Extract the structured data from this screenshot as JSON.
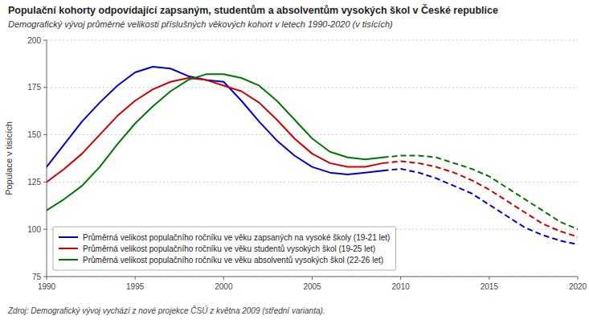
{
  "chart_data": {
    "type": "line",
    "title": "Populační kohorty odpovídající zapsaným, studentům a absolventům vysokých škol v České republice",
    "subtitle": "Demografický vývoj průměrné velikosti příslušných věkových kohort v letech 1990-2020 (v tisících)",
    "ylabel": "Populace v tisících",
    "source": "Zdroj: Demografický vývoj vychází z nové projekce ČSÚ z května 2009 (střední varianta).",
    "x": [
      1990,
      1991,
      1992,
      1993,
      1994,
      1995,
      1996,
      1997,
      1998,
      1999,
      2000,
      2001,
      2002,
      2003,
      2004,
      2005,
      2006,
      2007,
      2008,
      2009,
      2010,
      2011,
      2012,
      2013,
      2014,
      2015,
      2016,
      2017,
      2018,
      2019,
      2020
    ],
    "series": [
      {
        "name": "Průměrná velikost populačního ročníku ve věku zapsaných na vysoké školy (19-21 let)",
        "color": "#0000cc",
        "values": [
          133,
          145,
          157,
          167,
          176,
          183,
          186,
          185,
          181,
          179,
          178,
          168,
          157,
          147,
          139,
          133,
          130,
          129,
          130,
          131,
          132,
          130,
          127,
          123,
          119,
          113,
          107,
          101,
          97,
          94,
          92
        ]
      },
      {
        "name": "Průměrná velikost populačního ročníku ve věku studentů vysokých škol (19-25 let)",
        "color": "#cc0000",
        "values": [
          125,
          132,
          140,
          150,
          160,
          168,
          174,
          178,
          180,
          179,
          176,
          173,
          167,
          158,
          148,
          140,
          135,
          133,
          133,
          135,
          136,
          135,
          133,
          130,
          126,
          121,
          115,
          109,
          103,
          99,
          96
        ]
      },
      {
        "name": "Průměrná velikost populačního ročníku ve věku absolventů vysokých škol (22-26 let)",
        "color": "#007700",
        "values": [
          110,
          116,
          123,
          133,
          145,
          156,
          165,
          173,
          179,
          182,
          182,
          180,
          176,
          168,
          158,
          148,
          141,
          138,
          137,
          138,
          139,
          139,
          138,
          135,
          132,
          128,
          122,
          116,
          110,
          104,
          100
        ]
      }
    ],
    "projection_start": 2009,
    "xlim": [
      1990,
      2020
    ],
    "ylim": [
      75,
      200
    ],
    "xticks": [
      1990,
      1995,
      2000,
      2005,
      2010,
      2015,
      2020
    ],
    "yticks": [
      75,
      100,
      125,
      150,
      175,
      200
    ],
    "grid": true,
    "legend": "lower left"
  }
}
